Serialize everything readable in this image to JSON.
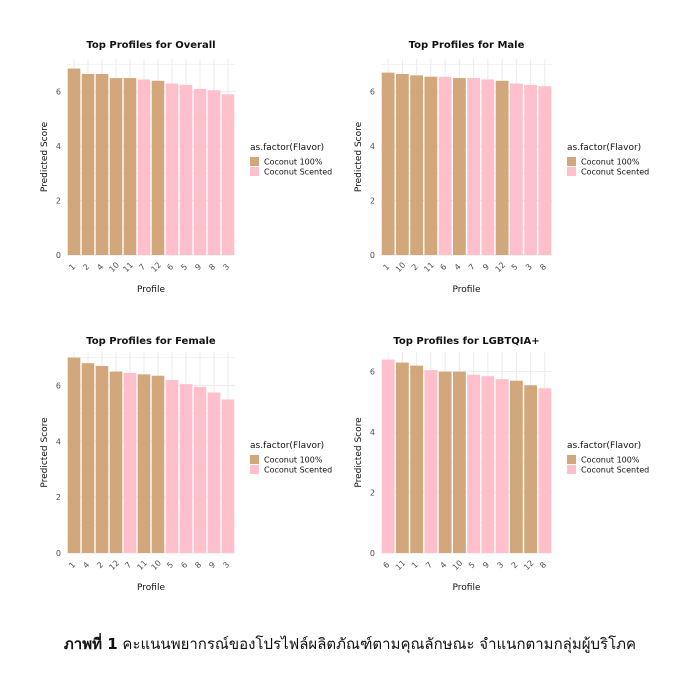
{
  "chart_data": [
    {
      "type": "bar",
      "title": "Top Profiles for Overall",
      "xlabel": "Profile",
      "ylabel": "Predicted Score",
      "ylim": [
        0,
        7.2
      ],
      "yticks": [
        0,
        2,
        4,
        6
      ],
      "grid": true,
      "legend_title": "as.factor(Flavor)",
      "legend_position": "right",
      "categories": [
        "1",
        "2",
        "4",
        "10",
        "11",
        "7",
        "12",
        "6",
        "5",
        "9",
        "8",
        "3"
      ],
      "values": [
        6.85,
        6.65,
        6.65,
        6.5,
        6.5,
        6.45,
        6.4,
        6.3,
        6.25,
        6.1,
        6.05,
        5.9
      ],
      "flavor": [
        "Coconut 100%",
        "Coconut 100%",
        "Coconut 100%",
        "Coconut 100%",
        "Coconut 100%",
        "Coconut Scented",
        "Coconut 100%",
        "Coconut Scented",
        "Coconut Scented",
        "Coconut Scented",
        "Coconut Scented",
        "Coconut Scented"
      ]
    },
    {
      "type": "bar",
      "title": "Top Profiles for Male",
      "xlabel": "Profile",
      "ylabel": "Predicted Score",
      "ylim": [
        0,
        7.2
      ],
      "yticks": [
        0,
        2,
        4,
        6
      ],
      "grid": true,
      "legend_title": "as.factor(Flavor)",
      "legend_position": "right",
      "categories": [
        "1",
        "10",
        "2",
        "11",
        "6",
        "4",
        "7",
        "9",
        "12",
        "5",
        "3",
        "8"
      ],
      "values": [
        6.7,
        6.65,
        6.6,
        6.55,
        6.55,
        6.5,
        6.5,
        6.45,
        6.4,
        6.3,
        6.25,
        6.2
      ],
      "flavor": [
        "Coconut 100%",
        "Coconut 100%",
        "Coconut 100%",
        "Coconut 100%",
        "Coconut Scented",
        "Coconut 100%",
        "Coconut Scented",
        "Coconut Scented",
        "Coconut 100%",
        "Coconut Scented",
        "Coconut Scented",
        "Coconut Scented"
      ]
    },
    {
      "type": "bar",
      "title": "Top Profiles for Female",
      "xlabel": "Profile",
      "ylabel": "Predicted Score",
      "ylim": [
        0,
        7.2
      ],
      "yticks": [
        0,
        2,
        4,
        6
      ],
      "grid": true,
      "legend_title": "as.factor(Flavor)",
      "legend_position": "right",
      "categories": [
        "1",
        "4",
        "2",
        "12",
        "7",
        "11",
        "10",
        "5",
        "6",
        "8",
        "9",
        "3"
      ],
      "values": [
        7.0,
        6.8,
        6.7,
        6.5,
        6.45,
        6.4,
        6.35,
        6.2,
        6.05,
        5.95,
        5.75,
        5.5
      ],
      "flavor": [
        "Coconut 100%",
        "Coconut 100%",
        "Coconut 100%",
        "Coconut 100%",
        "Coconut Scented",
        "Coconut 100%",
        "Coconut 100%",
        "Coconut Scented",
        "Coconut Scented",
        "Coconut Scented",
        "Coconut Scented",
        "Coconut Scented"
      ]
    },
    {
      "type": "bar",
      "title": "Top Profiles for LGBTQIA+",
      "xlabel": "Profile",
      "ylabel": "Predicted Score",
      "ylim": [
        0,
        6.65
      ],
      "yticks": [
        0,
        2,
        4,
        6
      ],
      "grid": true,
      "legend_title": "as.factor(Flavor)",
      "legend_position": "right",
      "categories": [
        "6",
        "11",
        "1",
        "7",
        "4",
        "10",
        "5",
        "9",
        "3",
        "2",
        "12",
        "8"
      ],
      "values": [
        6.4,
        6.3,
        6.2,
        6.05,
        6.0,
        6.0,
        5.9,
        5.85,
        5.75,
        5.7,
        5.55,
        5.45
      ],
      "flavor": [
        "Coconut Scented",
        "Coconut 100%",
        "Coconut 100%",
        "Coconut Scented",
        "Coconut 100%",
        "Coconut 100%",
        "Coconut Scented",
        "Coconut Scented",
        "Coconut Scented",
        "Coconut 100%",
        "Coconut 100%",
        "Coconut Scented"
      ]
    }
  ],
  "legend": {
    "items": [
      "Coconut 100%",
      "Coconut Scented"
    ]
  },
  "colors": {
    "Coconut 100%": "#d2a77c",
    "Coconut Scented": "#ffc0cb",
    "grid": "#ebebeb",
    "text": "#4d4d4d",
    "title": "#111111"
  },
  "caption": {
    "label": "ภาพที่ 1",
    "text": " คะแนนพยากรณ์ของโปรไฟล์ผลิตภัณฑ์ตามคุณลักษณะ จำแนกตามกลุ่มผู้บริโภค"
  }
}
